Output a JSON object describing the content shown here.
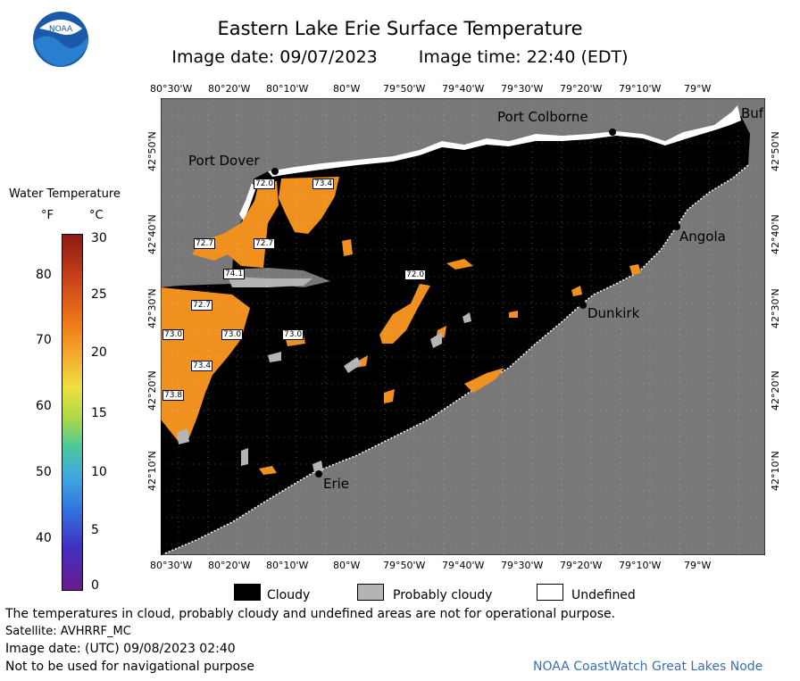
{
  "header": {
    "title": "Eastern Lake Erie Surface Temperature",
    "image_date_label": "Image date: 09/07/2023",
    "image_time_label": "Image time: 22:40 (EDT)",
    "logo_text": "NOAA"
  },
  "map": {
    "top_lon_ticks": [
      "80°30'W",
      "80°20'W",
      "80°10'W",
      "80°W",
      "79°50'W",
      "79°40'W",
      "79°30'W",
      "79°20'W",
      "79°10'W",
      "79°W"
    ],
    "bottom_lon_ticks": [
      "80°30'W",
      "80°20'W",
      "80°10'W",
      "80°W",
      "79°50'W",
      "79°40'W",
      "79°30'W",
      "79°20'W",
      "79°10'W",
      "79°W"
    ],
    "left_lat_ticks": [
      "42°50'N",
      "42°40'N",
      "42°30'N",
      "42°20'N",
      "42°10'N"
    ],
    "right_lat_ticks": [
      "42°50'N",
      "42°40'N",
      "42°30'N",
      "42°20'N",
      "42°10'N"
    ],
    "cities": {
      "port_colborne": "Port Colborne",
      "buffalo": "Buf",
      "port_dover": "Port Dover",
      "angola": "Angola",
      "dunkirk": "Dunkirk",
      "erie": "Erie"
    },
    "temperature_labels": [
      "72.0",
      "73.4",
      "72.7",
      "72.7",
      "74.1",
      "72.0",
      "72.7",
      "73.0",
      "73.0",
      "73.0",
      "73.4",
      "73.8"
    ]
  },
  "colorbar": {
    "title": "Water Temperature",
    "unit_f": "°F",
    "unit_c": "°C",
    "f_ticks": [
      "80",
      "70",
      "60",
      "50",
      "40"
    ],
    "c_ticks": [
      "30",
      "25",
      "20",
      "15",
      "10",
      "5",
      "0"
    ]
  },
  "legend": {
    "cloudy": "Cloudy",
    "probably_cloudy": "Probably cloudy",
    "undefined": "Undefined"
  },
  "footer": {
    "note": "The temperatures in cloud, probably cloudy and undefined areas are not for operational purpose.",
    "satellite": "Satellite: AVHRRF_MC",
    "utc_date": "Image date: (UTC) 09/08/2023  02:40",
    "nav_warning": "Not to be used for navigational purpose",
    "credit": "NOAA CoastWatch Great Lakes Node"
  },
  "colors": {
    "land": "#787878",
    "cloud": "#000000",
    "probably_cloudy": "#b4b4b4",
    "undefined": "#ffffff",
    "warm_water": "#f0901e",
    "credit": "#3a6fb5"
  }
}
